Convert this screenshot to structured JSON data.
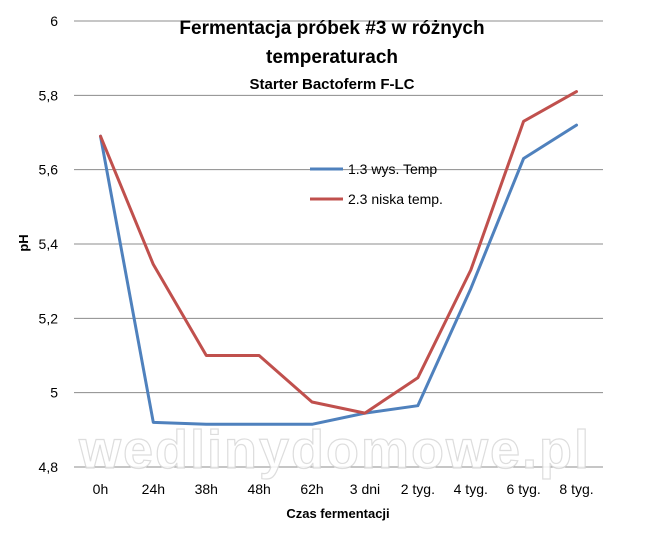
{
  "chart_data": {
    "type": "line",
    "title": "Fermentacja próbek #3 w różnych temperaturach",
    "title_lines": [
      "Fermentacja próbek #3 w różnych",
      "temperaturach"
    ],
    "subtitle": "Starter Bactoferm F-LC",
    "xlabel": "Czas fermentacji",
    "ylabel": "pH",
    "ylim": [
      4.8,
      6.0
    ],
    "yticks": [
      "4,8",
      "5",
      "5,2",
      "5,4",
      "5,6",
      "5,8",
      "6"
    ],
    "grid": true,
    "legend_position": "center",
    "categories": [
      "0h",
      "24h",
      "38h",
      "48h",
      "62h",
      "3 dni",
      "2 tyg.",
      "4 tyg.",
      "6 tyg.",
      "8 tyg."
    ],
    "series": [
      {
        "name": "1.3 wys. Temp",
        "color": "#4f81bd",
        "values": [
          5.69,
          4.92,
          4.915,
          4.915,
          4.915,
          4.945,
          4.965,
          5.28,
          5.63,
          5.72
        ]
      },
      {
        "name": "2.3 niska temp.",
        "color": "#c0504d",
        "values": [
          5.69,
          5.345,
          5.1,
          5.1,
          4.975,
          4.945,
          5.04,
          5.33,
          5.73,
          5.81
        ]
      }
    ]
  },
  "watermark": "wedlinydomowe.pl"
}
